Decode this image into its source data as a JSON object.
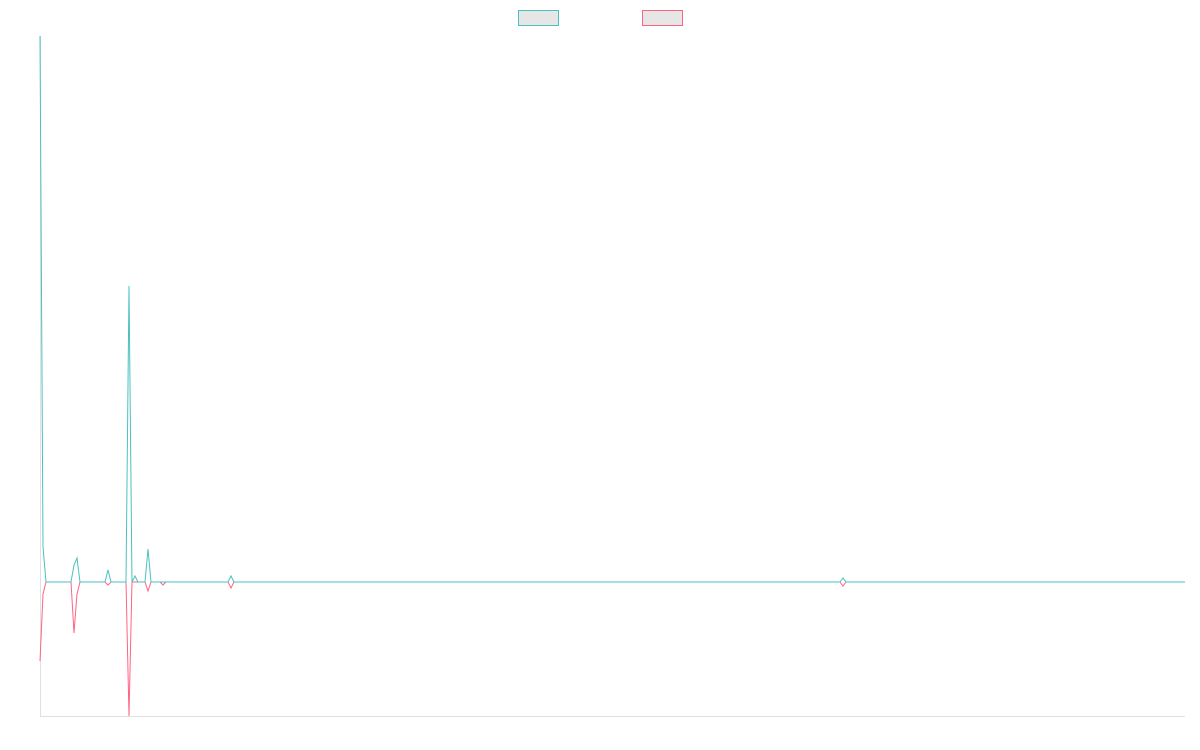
{
  "chart_data": {
    "type": "line",
    "x": [
      0,
      3,
      6,
      31,
      34,
      37,
      40,
      65,
      68,
      71,
      86,
      89,
      92,
      95,
      98,
      105,
      108,
      111,
      120,
      123,
      126,
      188,
      191,
      194,
      800,
      803,
      806,
      1145
    ],
    "series": [
      {
        "color": "#4bc0c0",
        "values": [
          546,
          35,
          0,
          0,
          17,
          24,
          0,
          0,
          12,
          0,
          0,
          296,
          0,
          6,
          0,
          0,
          33,
          0,
          0,
          0,
          0,
          0,
          6,
          0,
          0,
          4,
          0,
          0
        ]
      },
      {
        "color": "#ff6384",
        "values": [
          -79,
          -12,
          0,
          0,
          -51,
          -12,
          0,
          0,
          -3,
          0,
          0,
          -134,
          0,
          0,
          0,
          0,
          -9,
          0,
          0,
          -3,
          0,
          0,
          -6,
          0,
          0,
          -4,
          0,
          0
        ]
      }
    ],
    "xlim": [
      0,
      1145
    ],
    "ylim": [
      -134,
      546
    ],
    "legend": "top"
  }
}
